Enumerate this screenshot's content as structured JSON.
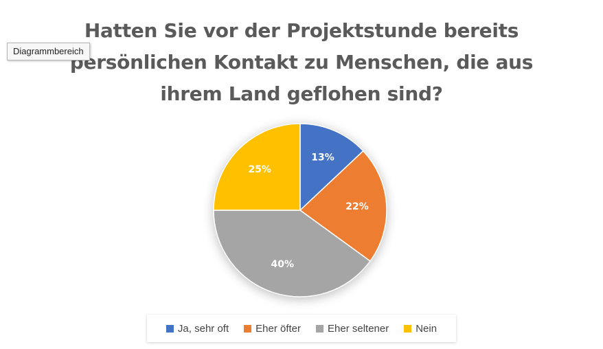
{
  "tooltip": {
    "label": "Diagrammbereich"
  },
  "chart_data": {
    "type": "pie",
    "title": "Hatten Sie vor der Projektstunde bereits\npersönlichen Kontakt zu Menschen, die aus\nihrem Land geflohen sind?",
    "categories": [
      "Ja, sehr oft",
      "Eher öfter",
      "Eher seltener",
      "Nein"
    ],
    "values": [
      13,
      22,
      40,
      25
    ],
    "labels": [
      "13%",
      "22%",
      "40%",
      "25%"
    ],
    "colors": [
      "#4472c4",
      "#ed7d31",
      "#a5a5a5",
      "#ffc000"
    ],
    "label_color": "#ffffff",
    "legend": "bottom"
  }
}
